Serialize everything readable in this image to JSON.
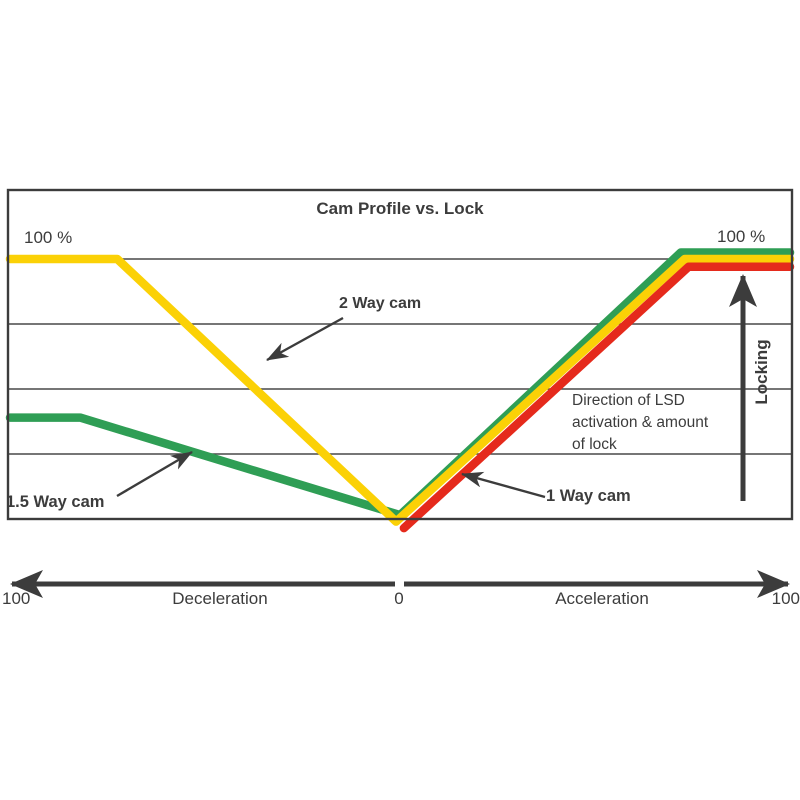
{
  "title": "Cam Profile vs. Lock",
  "labels": {
    "left_100": "100 %",
    "right_100": "100 %",
    "two_way": "2 Way cam",
    "one_half_way": "1.5 Way cam",
    "one_way": "1 Way cam",
    "direction1": "Direction of LSD",
    "direction2": "activation & amount",
    "direction3": "of lock",
    "locking": "Locking",
    "axis_left_100": "100",
    "axis_zero": "0",
    "axis_right_100": "100",
    "deceleration": "Deceleration",
    "acceleration": "Acceleration"
  },
  "colors": {
    "yellow": "#FBD106",
    "green": "#2F9E55",
    "red": "#E52A1C",
    "ink": "#3C3C3C",
    "grid": "#484848"
  },
  "chart_data": {
    "type": "line",
    "title": "Cam Profile vs. Lock",
    "xlabel": "Deceleration (-100) | 0 | Acceleration (+100)",
    "ylabel": "Locking (% of lock)",
    "x_axis": {
      "range": [
        -100,
        100
      ],
      "left_tick": "100",
      "center_tick": "0",
      "right_tick": "100",
      "left_zone_label": "Deceleration",
      "right_zone_label": "Acceleration"
    },
    "y_axis": {
      "range_pct": [
        0,
        126
      ],
      "gridlines_pct": [
        25,
        50,
        75,
        100
      ],
      "top_left_label": "100 %",
      "top_right_label": "100 %"
    },
    "legend_position": "inline-annotations",
    "grid": "horizontal",
    "series": [
      {
        "name": "1.5 Way cam",
        "color": "#2F9E55",
        "points": [
          [
            -100,
            39
          ],
          [
            -82,
            39
          ],
          [
            0,
            1.5
          ],
          [
            72,
            102.5
          ],
          [
            100,
            102.5
          ]
        ]
      },
      {
        "name": "2 Way cam",
        "color": "#FBD106",
        "points": [
          [
            -100,
            100
          ],
          [
            -72.5,
            100
          ],
          [
            -1,
            -1
          ],
          [
            73,
            100
          ],
          [
            100,
            100
          ]
        ]
      },
      {
        "name": "1 Way cam",
        "color": "#E52A1C",
        "points": [
          [
            1,
            -3.5
          ],
          [
            74,
            97
          ],
          [
            100,
            97
          ]
        ]
      }
    ],
    "annotation_note": "Direction of LSD activation & amount of lock"
  },
  "annotations": {
    "arrows": [
      {
        "name": "two-way-arrow",
        "kind": "ann",
        "from": [
          343,
          318
        ],
        "to": [
          267,
          360
        ]
      },
      {
        "name": "one-half-way-arrow",
        "kind": "ann",
        "from": [
          117,
          496
        ],
        "to": [
          192,
          452
        ]
      },
      {
        "name": "one-way-arrow",
        "kind": "ann",
        "from": [
          545,
          497
        ],
        "to": [
          462,
          474
        ]
      },
      {
        "name": "locking-arrow",
        "kind": "big",
        "from": [
          743,
          501
        ],
        "to": [
          743,
          276
        ]
      },
      {
        "name": "axis-left-arrow",
        "kind": "big",
        "from": [
          395,
          584
        ],
        "to": [
          12,
          584
        ]
      },
      {
        "name": "axis-right-arrow",
        "kind": "big",
        "from": [
          404,
          584
        ],
        "to": [
          788,
          584
        ]
      }
    ]
  }
}
